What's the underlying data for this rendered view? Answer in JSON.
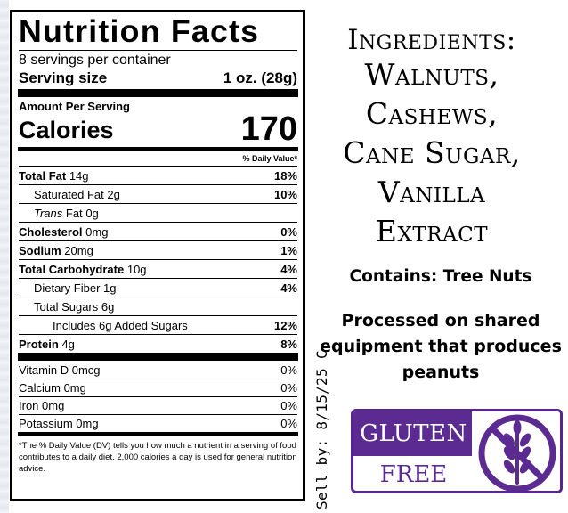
{
  "nutrition": {
    "title": "Nutrition Facts",
    "servings": "8 servings per container",
    "serving_size_label": "Serving size",
    "serving_size_value": "1 oz. (28g)",
    "amount_per_serving": "Amount Per Serving",
    "calories_label": "Calories",
    "calories_value": "170",
    "dv_header": "% Daily Value*",
    "rows": [
      {
        "name": "Total Fat",
        "amount": "14g",
        "dv": "18%"
      },
      {
        "name": "Saturated Fat",
        "amount": "2g",
        "dv": "10%"
      },
      {
        "name_italic": "Trans",
        "name": "Fat",
        "amount": "0g",
        "dv": ""
      },
      {
        "name": "Cholesterol",
        "amount": "0mg",
        "dv": "0%"
      },
      {
        "name": "Sodium",
        "amount": "20mg",
        "dv": "1%"
      },
      {
        "name": "Total Carbohydrate",
        "amount": "10g",
        "dv": "4%"
      },
      {
        "name": "Dietary Fiber",
        "amount": "1g",
        "dv": "4%"
      },
      {
        "name": "Total Sugars",
        "amount": "6g",
        "dv": ""
      },
      {
        "name": "Includes 6g Added Sugars",
        "amount": "",
        "dv": "12%"
      },
      {
        "name": "Protein",
        "amount": "4g",
        "dv": "8%"
      }
    ],
    "vitamins": [
      {
        "name": "Vitamin D 0mcg",
        "dv": "0%"
      },
      {
        "name": "Calcium 0mg",
        "dv": "0%"
      },
      {
        "name": "Iron 0mg",
        "dv": "0%"
      },
      {
        "name": "Potassium 0mg",
        "dv": "0%"
      }
    ],
    "footnote": "*The % Daily Value (DV) tells you how much a nutrient in a serving of food contributes to a daily diet. 2,000 calories a day is used for general nutrition advice."
  },
  "ingredients": {
    "heading": "Ingredients:",
    "items": [
      "Walnuts,",
      "Cashews,",
      "Cane Sugar,",
      "Vanilla",
      "Extract"
    ]
  },
  "allergen": {
    "contains": "Contains: Tree Nuts",
    "processed": "Processed on shared equipment that produces peanuts"
  },
  "sell_by": "Sell by: 8/15/25 C",
  "gluten_badge": {
    "top": "GLUTEN",
    "bottom": "FREE",
    "icon": "wheat-crossed-icon",
    "color": "#5b2b92"
  }
}
